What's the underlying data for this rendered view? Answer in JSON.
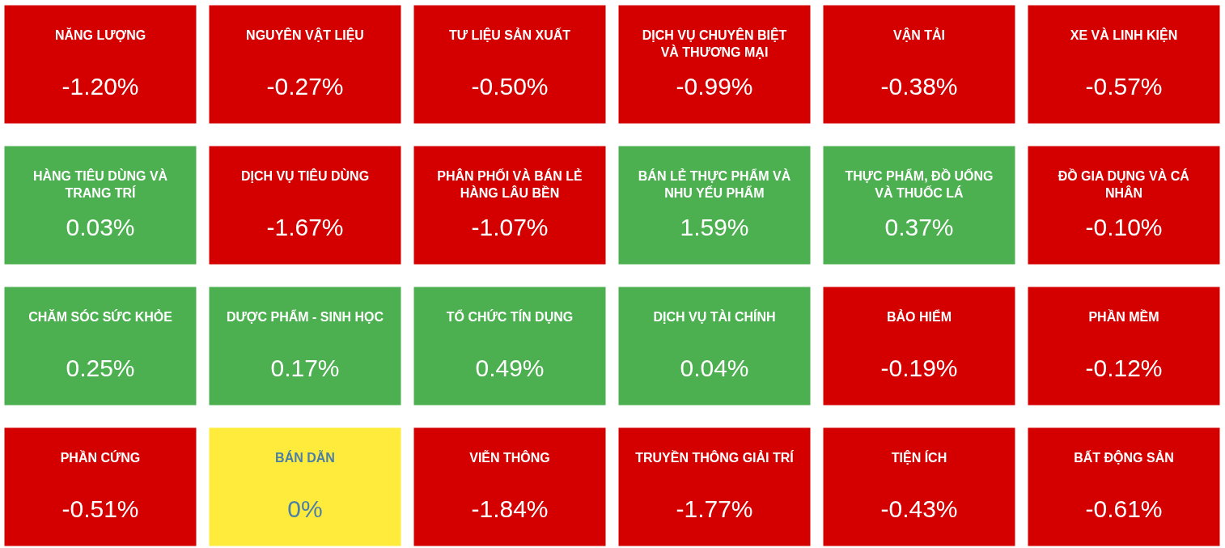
{
  "chart_data": {
    "type": "other",
    "categories": [
      "NĂNG LƯỢNG",
      "NGUYÊN VẬT LIỆU",
      "TƯ LIỆU SẢN XUẤT",
      "DỊCH VỤ CHUYÊN BIỆT VÀ THƯƠNG MẠI",
      "VẬN TẢI",
      "XE VÀ LINH KIỆN",
      "HÀNG TIÊU DÙNG VÀ TRANG TRÍ",
      "DỊCH VỤ TIÊU DÙNG",
      "PHÂN PHỐI VÀ BÁN LẺ HÀNG LÂU BỀN",
      "BÁN LẺ THỰC PHẨM VÀ NHU YẾU PHẨM",
      "THỰC PHẨM, ĐỒ UỐNG VÀ THUỐC LÁ",
      "ĐỒ GIA DỤNG VÀ CÁ NHÂN",
      "CHĂM SÓC SỨC KHỎE",
      "DƯỢC PHẨM - SINH HỌC",
      "TỔ CHỨC TÍN DỤNG",
      "DỊCH VỤ TÀI CHÍNH",
      "BẢO HIỂM",
      "PHẦN MỀM",
      "PHẦN CỨNG",
      "BÁN DẪN",
      "VIỄN THÔNG",
      "TRUYỀN THÔNG GIẢI TRÍ",
      "TIỆN ÍCH",
      "BẤT ĐỘNG SẢN"
    ],
    "values": [
      -1.2,
      -0.27,
      -0.5,
      -0.99,
      -0.38,
      -0.57,
      0.03,
      -1.67,
      -1.07,
      1.59,
      0.37,
      -0.1,
      0.25,
      0.17,
      0.49,
      0.04,
      -0.19,
      -0.12,
      -0.51,
      0,
      -1.84,
      -1.77,
      -0.43,
      -0.61
    ],
    "value_labels": [
      "-1.20%",
      "-0.27%",
      "-0.50%",
      "-0.99%",
      "-0.38%",
      "-0.57%",
      "0.03%",
      "-1.67%",
      "-1.07%",
      "1.59%",
      "0.37%",
      "-0.10%",
      "0.25%",
      "0.17%",
      "0.49%",
      "0.04%",
      "-0.19%",
      "-0.12%",
      "-0.51%",
      "0%",
      "-1.84%",
      "-1.77%",
      "-0.43%",
      "-0.61%"
    ]
  }
}
